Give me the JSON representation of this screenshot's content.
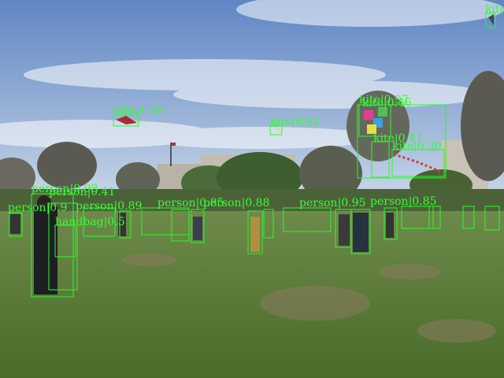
{
  "colors": {
    "sky_top": "#5f86c4",
    "sky_bottom": "#d9e4ef",
    "grass_near": "#4a6b2a",
    "grass_far": "#6d8a4a",
    "box": "#22ff22"
  },
  "detections": [
    {
      "label": "kite",
      "score": "1.00"
    },
    {
      "label": "kite",
      "score": "0.93"
    },
    {
      "label": "kite",
      "score": ""
    },
    {
      "label": "kite",
      "score": "0.97"
    },
    {
      "label": "kite",
      "score": "0.46"
    },
    {
      "label": "kite",
      "score": "0.41"
    },
    {
      "label": "kite",
      "score": "0.30"
    },
    {
      "label": "person",
      "score": "0.98"
    },
    {
      "label": "person",
      "score": "0.41"
    },
    {
      "label": "person",
      "score": "0.9"
    },
    {
      "label": "handbag",
      "score": "0.5"
    },
    {
      "label": "person",
      "score": "0.89"
    },
    {
      "label": "person",
      "score": "0.85"
    },
    {
      "label": "person",
      "score": "0.88"
    },
    {
      "label": "person",
      "score": "0.95"
    },
    {
      "label": "person",
      "score": "0.85"
    }
  ]
}
